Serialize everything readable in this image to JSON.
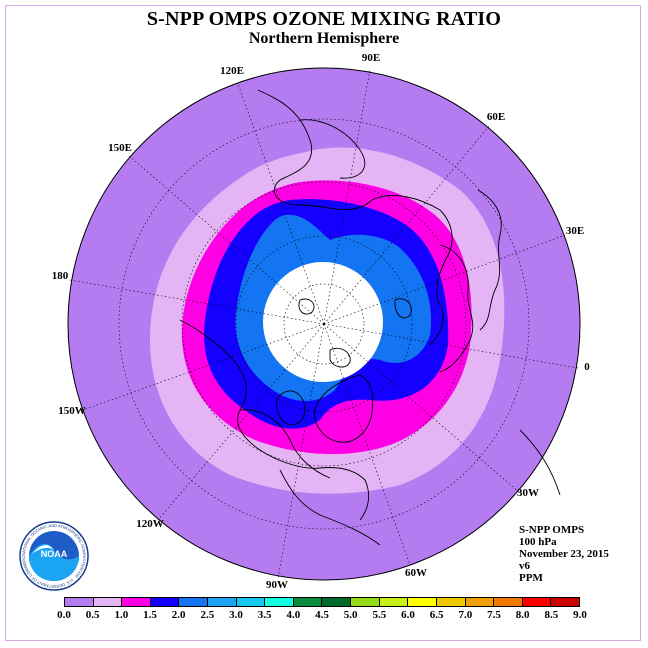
{
  "header": {
    "title": "S-NPP OMPS OZONE MIXING RATIO",
    "subtitle": "Northern Hemisphere"
  },
  "map": {
    "projection": "north-polar-stereographic",
    "longitude_labels": [
      "90E",
      "60E",
      "30E",
      "0",
      "30W",
      "60W",
      "90W",
      "120W",
      "150W",
      "180",
      "150E",
      "120E"
    ],
    "pole_fill_color": "#ffffff",
    "coastline_color": "#000000",
    "grid_style": "dotted"
  },
  "info": {
    "instrument": "S-NPP OMPS",
    "level": "100 hPa",
    "date": "November 23, 2015",
    "version": "v6",
    "units": "PPM"
  },
  "colorbar": {
    "ticks": [
      "0.0",
      "0.5",
      "1.0",
      "1.5",
      "2.0",
      "2.5",
      "3.0",
      "3.5",
      "4.0",
      "4.5",
      "5.0",
      "5.5",
      "6.0",
      "6.5",
      "7.0",
      "7.5",
      "8.0",
      "8.5",
      "9.0"
    ],
    "colors": [
      "#b57cf2",
      "#e4b4f5",
      "#ff00e4",
      "#1400ff",
      "#1475f2",
      "#1aa4f2",
      "#14c8f0",
      "#14ffe0",
      "#0a8c3c",
      "#006a2a",
      "#96dc14",
      "#c8f014",
      "#ffff00",
      "#f0c800",
      "#f0a000",
      "#f07800",
      "#ff0000",
      "#c80000",
      "#8c5028"
    ]
  },
  "logo": {
    "text": "NOAA",
    "ring_text": "NATIONAL OCEANIC AND ATMOSPHERIC ADMINISTRATION · U.S. DEPARTMENT OF COMMERCE"
  }
}
